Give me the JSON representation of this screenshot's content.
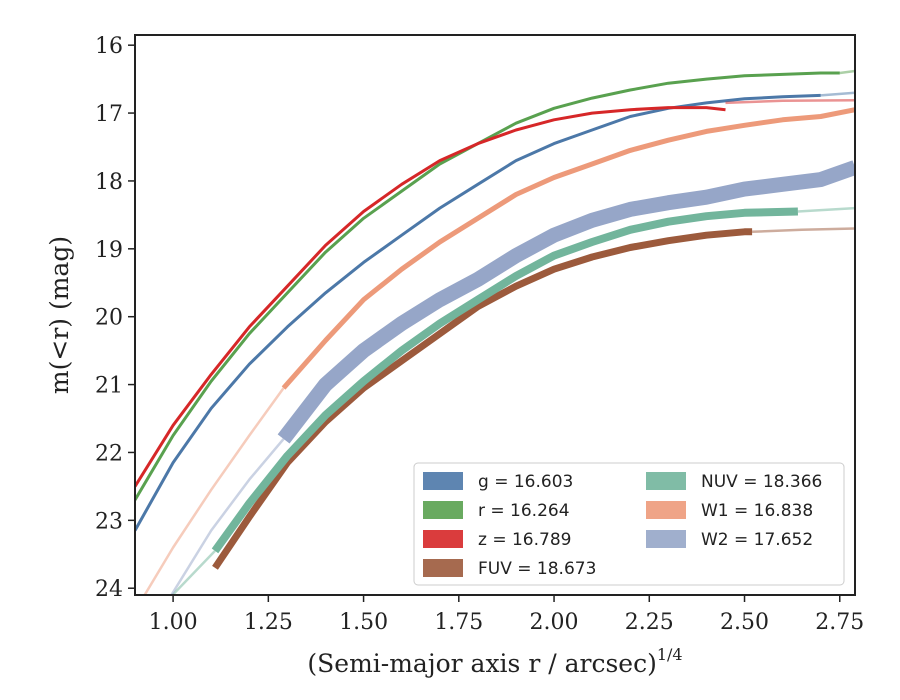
{
  "chart_data": {
    "type": "line",
    "xlabel": "(Semi-major axis r / arcsec)",
    "xlabel_sup": "1/4",
    "ylabel": "m(<r) (mag)",
    "xlim": [
      0.9,
      2.79
    ],
    "ylim": [
      24.1,
      15.85
    ],
    "y_inverted": true,
    "x_ticks": [
      1.0,
      1.25,
      1.5,
      1.75,
      2.0,
      2.25,
      2.5,
      2.75
    ],
    "x_tick_labels": [
      "1.00",
      "1.25",
      "1.50",
      "1.75",
      "2.00",
      "2.25",
      "2.50",
      "2.75"
    ],
    "y_ticks": [
      16,
      17,
      18,
      19,
      20,
      21,
      22,
      23,
      24
    ],
    "y_tick_labels": [
      "16",
      "17",
      "18",
      "19",
      "20",
      "21",
      "22",
      "23",
      "24"
    ],
    "grid": false,
    "legend_position": "lower-right",
    "series": [
      {
        "name": "g",
        "legend_label": "g = 16.603",
        "band": "g",
        "total_mag": 16.603,
        "color": "#4c78a8",
        "thickness": 3,
        "points": [
          [
            0.9,
            23.15
          ],
          [
            1.0,
            22.15
          ],
          [
            1.1,
            21.35
          ],
          [
            1.2,
            20.7
          ],
          [
            1.3,
            20.15
          ],
          [
            1.4,
            19.65
          ],
          [
            1.5,
            19.2
          ],
          [
            1.6,
            18.8
          ],
          [
            1.7,
            18.4
          ],
          [
            1.8,
            18.05
          ],
          [
            1.9,
            17.7
          ],
          [
            2.0,
            17.45
          ],
          [
            2.1,
            17.25
          ],
          [
            2.2,
            17.05
          ],
          [
            2.3,
            16.93
          ],
          [
            2.4,
            16.85
          ],
          [
            2.5,
            16.79
          ],
          [
            2.6,
            16.76
          ],
          [
            2.7,
            16.74
          ]
        ],
        "extension": [
          [
            2.7,
            16.74
          ],
          [
            2.79,
            16.7
          ]
        ]
      },
      {
        "name": "r",
        "legend_label": "r = 16.264",
        "band": "r",
        "total_mag": 16.264,
        "color": "#59a14f",
        "thickness": 3,
        "points": [
          [
            0.9,
            22.7
          ],
          [
            1.0,
            21.75
          ],
          [
            1.1,
            20.95
          ],
          [
            1.2,
            20.25
          ],
          [
            1.3,
            19.65
          ],
          [
            1.4,
            19.05
          ],
          [
            1.5,
            18.55
          ],
          [
            1.6,
            18.15
          ],
          [
            1.7,
            17.75
          ],
          [
            1.8,
            17.45
          ],
          [
            1.9,
            17.15
          ],
          [
            2.0,
            16.93
          ],
          [
            2.1,
            16.78
          ],
          [
            2.2,
            16.66
          ],
          [
            2.3,
            16.56
          ],
          [
            2.4,
            16.5
          ],
          [
            2.5,
            16.45
          ],
          [
            2.6,
            16.43
          ],
          [
            2.7,
            16.41
          ],
          [
            2.75,
            16.41
          ]
        ],
        "extension": [
          [
            2.75,
            16.41
          ],
          [
            2.79,
            16.38
          ]
        ]
      },
      {
        "name": "z",
        "legend_label": "z = 16.789",
        "band": "z",
        "total_mag": 16.789,
        "color": "#d62728",
        "thickness": 3,
        "points": [
          [
            0.9,
            22.5
          ],
          [
            1.0,
            21.6
          ],
          [
            1.1,
            20.85
          ],
          [
            1.2,
            20.15
          ],
          [
            1.3,
            19.55
          ],
          [
            1.4,
            18.95
          ],
          [
            1.5,
            18.45
          ],
          [
            1.6,
            18.05
          ],
          [
            1.7,
            17.7
          ],
          [
            1.8,
            17.45
          ],
          [
            1.9,
            17.25
          ],
          [
            2.0,
            17.1
          ],
          [
            2.1,
            17.0
          ],
          [
            2.2,
            16.95
          ],
          [
            2.3,
            16.92
          ],
          [
            2.4,
            16.92
          ],
          [
            2.45,
            16.95
          ]
        ],
        "extension": [
          [
            2.45,
            16.85
          ],
          [
            2.6,
            16.82
          ],
          [
            2.79,
            16.81
          ]
        ]
      },
      {
        "name": "FUV",
        "legend_label": "FUV = 18.673",
        "band": "FUV",
        "total_mag": 18.673,
        "color": "#9c5a3c",
        "thickness": 7,
        "points": [
          [
            1.11,
            23.7
          ],
          [
            1.2,
            22.95
          ],
          [
            1.3,
            22.15
          ],
          [
            1.4,
            21.55
          ],
          [
            1.5,
            21.05
          ],
          [
            1.6,
            20.65
          ],
          [
            1.7,
            20.25
          ],
          [
            1.8,
            19.85
          ],
          [
            1.9,
            19.55
          ],
          [
            2.0,
            19.3
          ],
          [
            2.1,
            19.12
          ],
          [
            2.2,
            18.98
          ],
          [
            2.3,
            18.88
          ],
          [
            2.4,
            18.8
          ],
          [
            2.5,
            18.75
          ],
          [
            2.52,
            18.75
          ]
        ],
        "extension": [
          [
            2.52,
            18.75
          ],
          [
            2.65,
            18.72
          ],
          [
            2.79,
            18.7
          ]
        ]
      },
      {
        "name": "NUV",
        "legend_label": "NUV = 18.366",
        "band": "NUV",
        "total_mag": 18.366,
        "color": "#72b59c",
        "thickness": 8,
        "points": [
          [
            1.11,
            23.45
          ],
          [
            1.2,
            22.75
          ],
          [
            1.3,
            22.05
          ],
          [
            1.4,
            21.45
          ],
          [
            1.5,
            20.95
          ],
          [
            1.6,
            20.5
          ],
          [
            1.7,
            20.1
          ],
          [
            1.8,
            19.75
          ],
          [
            1.9,
            19.4
          ],
          [
            2.0,
            19.1
          ],
          [
            2.1,
            18.9
          ],
          [
            2.2,
            18.72
          ],
          [
            2.3,
            18.6
          ],
          [
            2.4,
            18.52
          ],
          [
            2.5,
            18.47
          ],
          [
            2.64,
            18.45
          ]
        ],
        "extension": [
          [
            0.99,
            24.15
          ],
          [
            1.11,
            23.45
          ]
        ],
        "extension_end": [
          [
            2.64,
            18.45
          ],
          [
            2.79,
            18.4
          ]
        ]
      },
      {
        "name": "W1",
        "legend_label": "W1 = 16.838",
        "band": "W1",
        "total_mag": 16.838,
        "color": "#ed9a7a",
        "thickness": 5,
        "points": [
          [
            1.29,
            21.05
          ],
          [
            1.4,
            20.35
          ],
          [
            1.5,
            19.75
          ],
          [
            1.6,
            19.3
          ],
          [
            1.7,
            18.9
          ],
          [
            1.8,
            18.55
          ],
          [
            1.9,
            18.2
          ],
          [
            2.0,
            17.95
          ],
          [
            2.1,
            17.75
          ],
          [
            2.2,
            17.55
          ],
          [
            2.3,
            17.4
          ],
          [
            2.4,
            17.27
          ],
          [
            2.5,
            17.18
          ],
          [
            2.6,
            17.1
          ],
          [
            2.7,
            17.05
          ],
          [
            2.79,
            16.95
          ]
        ],
        "extension": [
          [
            0.92,
            24.15
          ],
          [
            1.0,
            23.4
          ],
          [
            1.1,
            22.55
          ],
          [
            1.2,
            21.75
          ],
          [
            1.29,
            21.05
          ]
        ]
      },
      {
        "name": "W2",
        "legend_label": "W2 = 17.652",
        "band": "W2",
        "total_mag": 17.652,
        "color": "#96a6c8",
        "thickness": 15,
        "points": [
          [
            1.29,
            21.8
          ],
          [
            1.4,
            21.0
          ],
          [
            1.5,
            20.5
          ],
          [
            1.6,
            20.1
          ],
          [
            1.7,
            19.75
          ],
          [
            1.8,
            19.45
          ],
          [
            1.9,
            19.1
          ],
          [
            2.0,
            18.8
          ],
          [
            2.1,
            18.58
          ],
          [
            2.2,
            18.42
          ],
          [
            2.3,
            18.32
          ],
          [
            2.4,
            18.24
          ],
          [
            2.5,
            18.12
          ],
          [
            2.6,
            18.05
          ],
          [
            2.7,
            17.98
          ],
          [
            2.79,
            17.8
          ]
        ],
        "extension": [
          [
            0.99,
            24.15
          ],
          [
            1.1,
            23.15
          ],
          [
            1.2,
            22.4
          ],
          [
            1.29,
            21.8
          ]
        ]
      }
    ]
  }
}
